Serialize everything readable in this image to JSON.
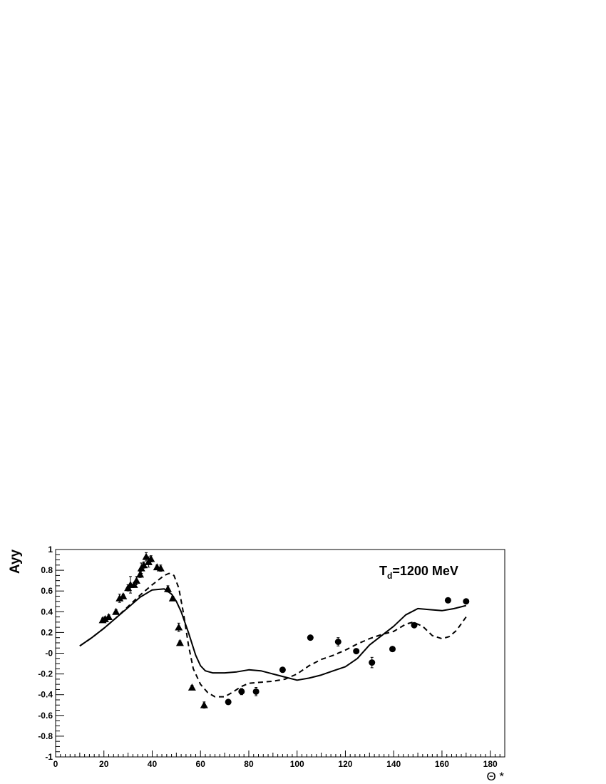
{
  "chart_data": {
    "type": "scatter",
    "title": "",
    "xlabel": "Θ *",
    "ylabel": "Ayy",
    "xlim": [
      0,
      186
    ],
    "ylim": [
      -1,
      1
    ],
    "x_tick_labels": [
      "0",
      "20",
      "40",
      "60",
      "80",
      "100",
      "120",
      "140",
      "160",
      "180"
    ],
    "y_tick_labels": [
      "-1",
      "-0.8",
      "-0.6",
      "-0.4",
      "-0.2",
      "-0",
      "0.2",
      "0.4",
      "0.6",
      "0.8",
      "1"
    ],
    "annotation": {
      "main": "T",
      "sub": "d",
      "rest": "=1200 MeV"
    },
    "grid": false,
    "series": [
      {
        "marker": "triangle",
        "points": [
          {
            "x": 19.5,
            "y": 0.32,
            "err": 0.02
          },
          {
            "x": 20.5,
            "y": 0.33,
            "err": 0.02
          },
          {
            "x": 22,
            "y": 0.35,
            "err": 0.02
          },
          {
            "x": 25,
            "y": 0.4,
            "err": 0.02
          },
          {
            "x": 26.5,
            "y": 0.53,
            "err": 0.04
          },
          {
            "x": 28,
            "y": 0.55,
            "err": 0.02
          },
          {
            "x": 30,
            "y": 0.63,
            "err": 0.03
          },
          {
            "x": 31,
            "y": 0.66,
            "err": 0.08
          },
          {
            "x": 32.5,
            "y": 0.66,
            "err": 0.02
          },
          {
            "x": 33.5,
            "y": 0.7,
            "err": 0.04
          },
          {
            "x": 35,
            "y": 0.76,
            "err": 0.03
          },
          {
            "x": 35.5,
            "y": 0.82,
            "err": 0.05
          },
          {
            "x": 36.5,
            "y": 0.85,
            "err": 0.03
          },
          {
            "x": 37.5,
            "y": 0.93,
            "err": 0.04
          },
          {
            "x": 38.5,
            "y": 0.88,
            "err": 0.05
          },
          {
            "x": 39.5,
            "y": 0.91,
            "err": 0.03
          },
          {
            "x": 42,
            "y": 0.83,
            "err": 0.02
          },
          {
            "x": 43.5,
            "y": 0.82,
            "err": 0.03
          },
          {
            "x": 46.5,
            "y": 0.62,
            "err": 0.03
          },
          {
            "x": 48.5,
            "y": 0.53,
            "err": 0.02
          },
          {
            "x": 51,
            "y": 0.25,
            "err": 0.04
          },
          {
            "x": 51.5,
            "y": 0.1,
            "err": 0.02
          },
          {
            "x": 56.5,
            "y": -0.33,
            "err": 0.02
          },
          {
            "x": 61.5,
            "y": -0.5,
            "err": 0.03
          }
        ]
      },
      {
        "marker": "circle",
        "points": [
          {
            "x": 71.5,
            "y": -0.47,
            "err": 0.02
          },
          {
            "x": 77,
            "y": -0.37,
            "err": 0.03
          },
          {
            "x": 83,
            "y": -0.37,
            "err": 0.04
          },
          {
            "x": 94,
            "y": -0.16,
            "err": 0.02
          },
          {
            "x": 105.5,
            "y": 0.15,
            "err": 0.02
          },
          {
            "x": 117,
            "y": 0.11,
            "err": 0.04
          },
          {
            "x": 124.5,
            "y": 0.02,
            "err": 0.02
          },
          {
            "x": 131,
            "y": -0.09,
            "err": 0.05
          },
          {
            "x": 139.5,
            "y": 0.04,
            "err": 0.02
          },
          {
            "x": 148.5,
            "y": 0.27,
            "err": 0.02
          },
          {
            "x": 162.5,
            "y": 0.51,
            "err": 0.02
          },
          {
            "x": 170,
            "y": 0.5,
            "err": 0.02
          }
        ]
      },
      {
        "type": "line",
        "style": "solid",
        "x": [
          10,
          15,
          20,
          25,
          30,
          35,
          40,
          45,
          48,
          50,
          52,
          55,
          58,
          60,
          62,
          65,
          70,
          75,
          80,
          85,
          90,
          95,
          100,
          105,
          110,
          115,
          120,
          125,
          130,
          135,
          140,
          145,
          150,
          155,
          160,
          165,
          170
        ],
        "y": [
          0.07,
          0.15,
          0.24,
          0.34,
          0.44,
          0.54,
          0.61,
          0.62,
          0.57,
          0.5,
          0.4,
          0.2,
          -0.02,
          -0.12,
          -0.17,
          -0.19,
          -0.19,
          -0.18,
          -0.16,
          -0.17,
          -0.2,
          -0.23,
          -0.26,
          -0.24,
          -0.21,
          -0.17,
          -0.13,
          -0.05,
          0.08,
          0.17,
          0.26,
          0.37,
          0.43,
          0.42,
          0.41,
          0.43,
          0.46
        ]
      },
      {
        "type": "line",
        "style": "dashed",
        "x": [
          10,
          15,
          20,
          25,
          30,
          35,
          40,
          45,
          47,
          49,
          51,
          53,
          55,
          57,
          60,
          63,
          66,
          70,
          73,
          77,
          80,
          85,
          90,
          95,
          100,
          105,
          110,
          115,
          120,
          125,
          130,
          135,
          140,
          145,
          148,
          152,
          156,
          160,
          163,
          166,
          170
        ],
        "y": [
          0.07,
          0.15,
          0.24,
          0.34,
          0.45,
          0.56,
          0.66,
          0.75,
          0.77,
          0.75,
          0.63,
          0.38,
          0.08,
          -0.15,
          -0.3,
          -0.38,
          -0.42,
          -0.42,
          -0.38,
          -0.32,
          -0.29,
          -0.28,
          -0.27,
          -0.25,
          -0.2,
          -0.12,
          -0.06,
          -0.02,
          0.03,
          0.09,
          0.14,
          0.18,
          0.21,
          0.28,
          0.3,
          0.26,
          0.17,
          0.14,
          0.16,
          0.22,
          0.35
        ]
      }
    ]
  }
}
